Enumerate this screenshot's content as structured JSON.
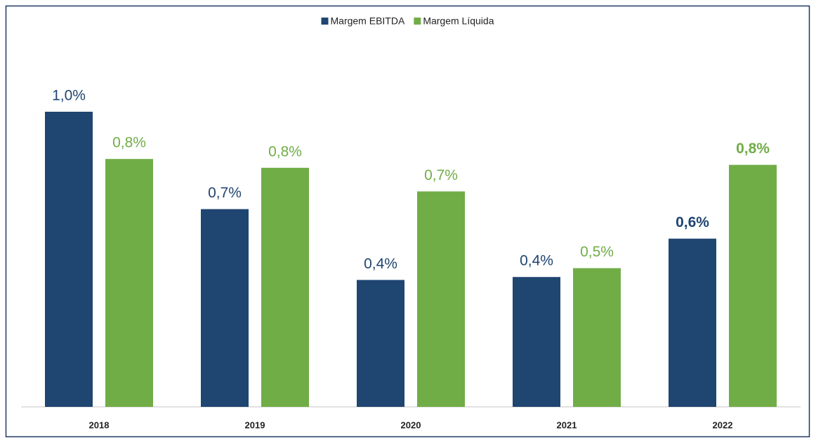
{
  "chart_data": {
    "type": "bar",
    "categories": [
      "2018",
      "2019",
      "2020",
      "2021",
      "2022"
    ],
    "series": [
      {
        "name": "Margem EBITDA",
        "color": "#1f4571",
        "values": [
          1.0,
          0.67,
          0.43,
          0.44,
          0.57
        ],
        "value_labels": [
          "1,0%",
          "0,7%",
          "0,4%",
          "0,4%",
          "0,6%"
        ]
      },
      {
        "name": "Margem Líquida",
        "color": "#70ad47",
        "values": [
          0.84,
          0.81,
          0.73,
          0.47,
          0.82
        ],
        "value_labels": [
          "0,8%",
          "0,8%",
          "0,7%",
          "0,5%",
          "0,8%"
        ]
      }
    ],
    "ylim": [
      0,
      1.2
    ],
    "legend": "top"
  }
}
